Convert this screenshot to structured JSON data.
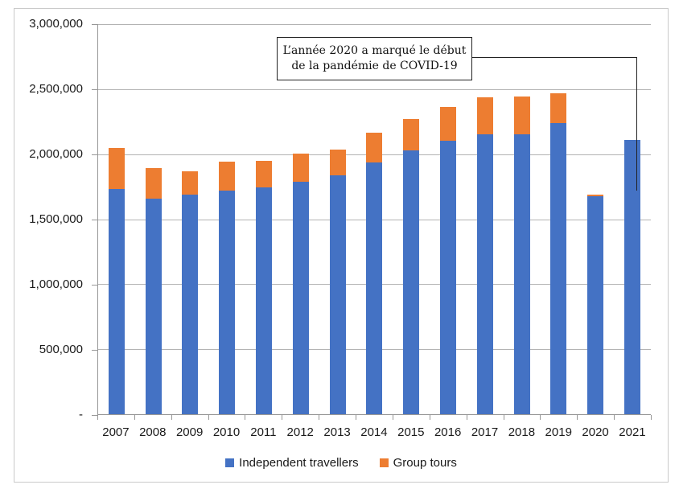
{
  "annotation": {
    "line1": "L’année 2020 a marqué le début",
    "line2": "de la pandémie de COVID-19"
  },
  "chart_data": {
    "type": "bar",
    "stacked": true,
    "title": "",
    "xlabel": "",
    "ylabel": "",
    "ylim": [
      0,
      3000000
    ],
    "grid": "horizontal",
    "legend_position": "bottom",
    "categories": [
      "2007",
      "2008",
      "2009",
      "2010",
      "2011",
      "2012",
      "2013",
      "2014",
      "2015",
      "2016",
      "2017",
      "2018",
      "2019",
      "2020",
      "2021"
    ],
    "series": [
      {
        "name": "Independent travellers",
        "color": "#4472C4",
        "values": [
          1730000,
          1660000,
          1690000,
          1720000,
          1745000,
          1790000,
          1835000,
          1935000,
          2030000,
          2105000,
          2155000,
          2150000,
          2240000,
          1675000,
          2110000
        ]
      },
      {
        "name": "Group tours",
        "color": "#ED7D31",
        "values": [
          315000,
          235000,
          180000,
          220000,
          205000,
          215000,
          200000,
          230000,
          240000,
          260000,
          280000,
          295000,
          230000,
          15000,
          0
        ]
      }
    ],
    "y_ticks": [
      {
        "label": "-",
        "value": 0
      },
      {
        "label": "500,000",
        "value": 500000
      },
      {
        "label": "1,000,000",
        "value": 1000000
      },
      {
        "label": "1,500,000",
        "value": 1500000
      },
      {
        "label": "2,000,000",
        "value": 2000000
      },
      {
        "label": "2,500,000",
        "value": 2500000
      },
      {
        "label": "3,000,000",
        "value": 3000000
      }
    ]
  }
}
